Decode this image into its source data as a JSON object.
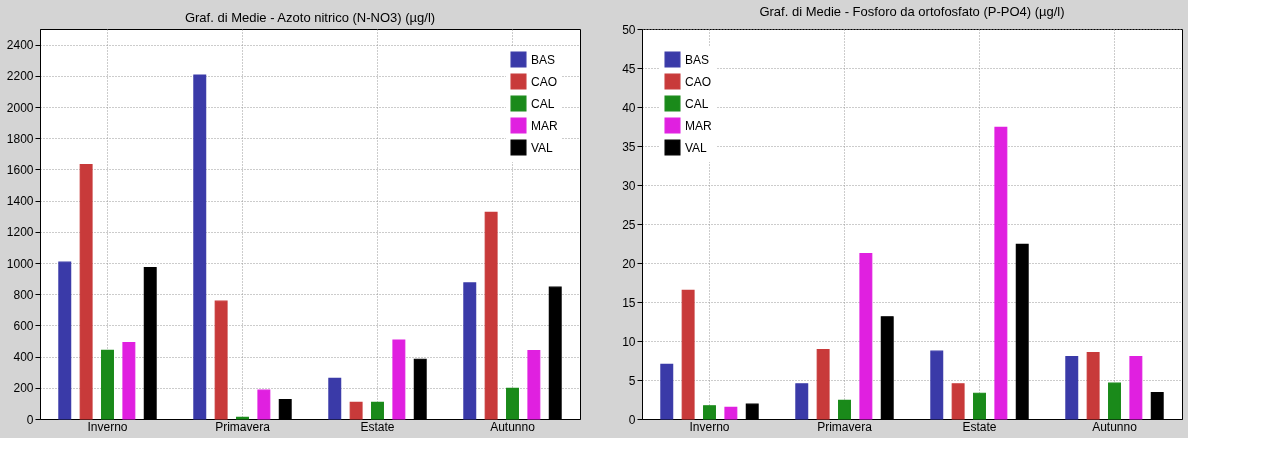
{
  "chart_data": [
    {
      "type": "bar",
      "title": "Graf. di Medie - Azoto nitrico (N-NO3) (µg/l)",
      "categories": [
        "Inverno",
        "Primavera",
        "Estate",
        "Autunno"
      ],
      "series": [
        {
          "name": "BAS",
          "color": "#3a3aa8",
          "values": [
            1005,
            2205,
            260,
            872
          ]
        },
        {
          "name": "CAO",
          "color": "#c83a3a",
          "values": [
            1630,
            755,
            106,
            1325
          ]
        },
        {
          "name": "CAL",
          "color": "#1a8a1a",
          "values": [
            440,
            10,
            106,
            196
          ]
        },
        {
          "name": "MAR",
          "color": "#e020e0",
          "values": [
            490,
            185,
            506,
            438
          ]
        },
        {
          "name": "VAL",
          "color": "#000000",
          "values": [
            970,
            125,
            383,
            845
          ]
        }
      ],
      "ylim": [
        0,
        2500
      ],
      "yticks": [
        0,
        200,
        400,
        600,
        800,
        1000,
        1200,
        1400,
        1600,
        1800,
        2000,
        2200,
        2400
      ],
      "grid": true,
      "legend": "top right"
    },
    {
      "type": "bar",
      "title": "Graf. di Medie - Fosforo da ortofosfato (P-PO4) (µg/l)",
      "categories": [
        "Inverno",
        "Primavera",
        "Estate",
        "Autunno"
      ],
      "series": [
        {
          "name": "BAS",
          "color": "#3a3aa8",
          "values": [
            7.0,
            4.5,
            8.7,
            8.0
          ]
        },
        {
          "name": "CAO",
          "color": "#c83a3a",
          "values": [
            16.5,
            8.9,
            4.5,
            8.5
          ]
        },
        {
          "name": "CAL",
          "color": "#1a8a1a",
          "values": [
            1.7,
            2.4,
            3.3,
            4.6
          ]
        },
        {
          "name": "MAR",
          "color": "#e020e0",
          "values": [
            1.5,
            21.2,
            37.4,
            8.0
          ]
        },
        {
          "name": "VAL",
          "color": "#000000",
          "values": [
            1.9,
            13.1,
            22.4,
            3.4
          ]
        }
      ],
      "ylim": [
        0,
        50
      ],
      "yticks": [
        0,
        5,
        10,
        15,
        20,
        25,
        30,
        35,
        40,
        45,
        50
      ],
      "grid": true,
      "legend": "top left"
    }
  ]
}
